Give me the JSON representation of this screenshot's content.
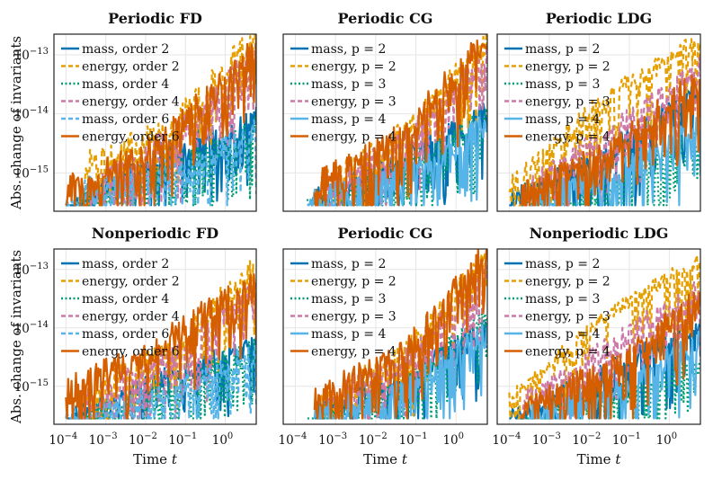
{
  "figure": {
    "ylabel": "Abs. change of invariants",
    "xlabel_prefix": "Time",
    "xlabel_var": "t",
    "x_tick_labels": [
      "10",
      "10",
      "10",
      "10",
      "10"
    ],
    "x_tick_exponents": [
      "−4",
      "−3",
      "−2",
      "−1",
      "0"
    ],
    "y_tick_labels": [
      "10",
      "10",
      "10"
    ],
    "y_tick_exponents": [
      "−15",
      "−14",
      "−13"
    ]
  },
  "chart_data": [
    {
      "type": "line",
      "title": "Periodic FD",
      "xscale": "log",
      "yscale": "log",
      "xlim": [
        5e-05,
        6
      ],
      "ylim_log10": [
        -15.65,
        -12.65
      ],
      "legend_position": "top-left",
      "grid": true,
      "series": [
        {
          "name": "mass, order 2",
          "color": "#0072b2",
          "style": "solid",
          "start": 0.0001,
          "end": 6,
          "level": [
            -15.6,
            -14.7,
            -14.1
          ],
          "noise": 0.45,
          "seed": 11
        },
        {
          "name": "energy, order 2",
          "color": "#e69f00",
          "style": "dashed",
          "start": 0.0003,
          "end": 6,
          "level": [
            -14.9,
            -14.2,
            -12.7
          ],
          "noise": 0.5,
          "seed": 12
        },
        {
          "name": "mass, order 4",
          "color": "#009e73",
          "style": "dotted",
          "start": 0.0002,
          "end": 6,
          "level": [
            -15.6,
            -15.0,
            -14.2
          ],
          "noise": 0.45,
          "seed": 13
        },
        {
          "name": "energy, order 4",
          "color": "#cc79a7",
          "style": "dashed",
          "start": 0.0004,
          "end": 6,
          "level": [
            -15.4,
            -14.4,
            -13.0
          ],
          "noise": 0.5,
          "seed": 14
        },
        {
          "name": "mass, order 6",
          "color": "#56b4e9",
          "style": "dashed",
          "start": 0.0001,
          "end": 6,
          "level": [
            -15.35,
            -15.1,
            -14.3
          ],
          "noise": 0.45,
          "seed": 15
        },
        {
          "name": "energy, order 6",
          "color": "#d55e00",
          "style": "solid",
          "start": 0.0001,
          "end": 6,
          "level": [
            -15.3,
            -14.5,
            -12.9
          ],
          "noise": 0.5,
          "seed": 16
        }
      ]
    },
    {
      "type": "line",
      "title": "Periodic CG",
      "xscale": "log",
      "yscale": "log",
      "xlim": [
        5e-05,
        6
      ],
      "ylim_log10": [
        -15.65,
        -12.65
      ],
      "legend_position": "top-left",
      "grid": true,
      "series": [
        {
          "name": "mass, p = 2",
          "color": "#0072b2",
          "style": "solid",
          "start": 0.0003,
          "end": 6,
          "level": [
            -15.5,
            -14.8,
            -14.0
          ],
          "noise": 0.45,
          "seed": 21
        },
        {
          "name": "energy, p = 2",
          "color": "#e69f00",
          "style": "dashed",
          "start": 0.0003,
          "end": 6,
          "level": [
            -15.3,
            -14.4,
            -12.8
          ],
          "noise": 0.5,
          "seed": 22
        },
        {
          "name": "mass, p = 3",
          "color": "#009e73",
          "style": "dotted",
          "start": 0.0002,
          "end": 6,
          "level": [
            -15.6,
            -15.0,
            -14.1
          ],
          "noise": 0.45,
          "seed": 23
        },
        {
          "name": "energy, p = 3",
          "color": "#cc79a7",
          "style": "dashed",
          "start": 0.0005,
          "end": 6,
          "level": [
            -15.3,
            -14.5,
            -13.0
          ],
          "noise": 0.5,
          "seed": 24
        },
        {
          "name": "mass, p = 4",
          "color": "#56b4e9",
          "style": "solid",
          "start": 0.0002,
          "end": 6,
          "level": [
            -15.5,
            -15.1,
            -14.2
          ],
          "noise": 0.45,
          "seed": 25
        },
        {
          "name": "energy, p = 4",
          "color": "#d55e00",
          "style": "solid",
          "start": 0.0003,
          "end": 6,
          "level": [
            -15.2,
            -14.4,
            -12.7
          ],
          "noise": 0.5,
          "seed": 26
        }
      ]
    },
    {
      "type": "line",
      "title": "Periodic LDG",
      "xscale": "log",
      "yscale": "log",
      "xlim": [
        5e-05,
        6
      ],
      "ylim_log10": [
        -15.65,
        -12.65
      ],
      "legend_position": "top-left",
      "grid": true,
      "series": [
        {
          "name": "mass, p = 2",
          "color": "#0072b2",
          "style": "solid",
          "start": 0.0001,
          "end": 6,
          "level": [
            -15.5,
            -14.7,
            -13.6
          ],
          "noise": 0.4,
          "seed": 31
        },
        {
          "name": "energy, p = 2",
          "color": "#e69f00",
          "style": "dashed",
          "start": 0.0001,
          "end": 6,
          "level": [
            -15.2,
            -13.7,
            -12.7
          ],
          "noise": 0.25,
          "seed": 32
        },
        {
          "name": "mass, p = 3",
          "color": "#009e73",
          "style": "dotted",
          "start": 0.0002,
          "end": 6,
          "level": [
            -15.6,
            -15.2,
            -14.4
          ],
          "noise": 0.45,
          "seed": 33
        },
        {
          "name": "energy, p = 3",
          "color": "#cc79a7",
          "style": "dashed",
          "start": 0.0002,
          "end": 6,
          "level": [
            -15.3,
            -14.3,
            -13.2
          ],
          "noise": 0.4,
          "seed": 34
        },
        {
          "name": "mass, p = 4",
          "color": "#56b4e9",
          "style": "solid",
          "start": 0.0003,
          "end": 6,
          "level": [
            -15.5,
            -15.0,
            -14.2
          ],
          "noise": 0.45,
          "seed": 35
        },
        {
          "name": "energy, p = 4",
          "color": "#d55e00",
          "style": "solid",
          "start": 0.0002,
          "end": 6,
          "level": [
            -15.4,
            -14.6,
            -13.4
          ],
          "noise": 0.45,
          "seed": 36
        }
      ]
    },
    {
      "type": "line",
      "title": "Nonperiodic FD",
      "xscale": "log",
      "yscale": "log",
      "xlim": [
        5e-05,
        6
      ],
      "ylim_log10": [
        -15.65,
        -12.65
      ],
      "legend_position": "top-left",
      "grid": true,
      "series": [
        {
          "name": "mass, order 2",
          "color": "#0072b2",
          "style": "solid",
          "start": 0.0001,
          "end": 6,
          "level": [
            -15.6,
            -14.9,
            -14.3
          ],
          "noise": 0.45,
          "seed": 41
        },
        {
          "name": "energy, order 2",
          "color": "#e69f00",
          "style": "dashed",
          "start": 0.0002,
          "end": 6,
          "level": [
            -15.2,
            -14.4,
            -13.0
          ],
          "noise": 0.5,
          "seed": 42
        },
        {
          "name": "mass, order 4",
          "color": "#009e73",
          "style": "dotted",
          "start": 0.0002,
          "end": 6,
          "level": [
            -15.6,
            -15.0,
            -14.4
          ],
          "noise": 0.45,
          "seed": 43
        },
        {
          "name": "energy, order 4",
          "color": "#cc79a7",
          "style": "dashed",
          "start": 0.0002,
          "end": 6,
          "level": [
            -15.3,
            -14.6,
            -13.3
          ],
          "noise": 0.5,
          "seed": 44
        },
        {
          "name": "mass, order 6",
          "color": "#56b4e9",
          "style": "dashed",
          "start": 0.0001,
          "end": 6,
          "level": [
            -15.6,
            -15.2,
            -14.4
          ],
          "noise": 0.45,
          "seed": 45
        },
        {
          "name": "energy, order 6",
          "color": "#d55e00",
          "style": "solid",
          "start": 0.0001,
          "end": 6,
          "level": [
            -15.1,
            -14.3,
            -13.1
          ],
          "noise": 0.5,
          "seed": 46
        }
      ]
    },
    {
      "type": "line",
      "title": "Periodic CG",
      "xscale": "log",
      "yscale": "log",
      "xlim": [
        5e-05,
        6
      ],
      "ylim_log10": [
        -15.65,
        -12.65
      ],
      "legend_position": "top-left",
      "grid": true,
      "series": [
        {
          "name": "mass, p = 2",
          "color": "#0072b2",
          "style": "solid",
          "start": 0.0003,
          "end": 6,
          "level": [
            -15.5,
            -14.9,
            -14.0
          ],
          "noise": 0.45,
          "seed": 51
        },
        {
          "name": "energy, p = 2",
          "color": "#e69f00",
          "style": "dashed",
          "start": 0.0004,
          "end": 6,
          "level": [
            -15.3,
            -14.5,
            -12.8
          ],
          "noise": 0.5,
          "seed": 52
        },
        {
          "name": "mass, p = 3",
          "color": "#009e73",
          "style": "dotted",
          "start": 0.0002,
          "end": 6,
          "level": [
            -15.6,
            -15.1,
            -13.8
          ],
          "noise": 0.45,
          "seed": 53
        },
        {
          "name": "energy, p = 3",
          "color": "#cc79a7",
          "style": "dashed",
          "start": 0.0005,
          "end": 6,
          "level": [
            -15.3,
            -14.6,
            -13.1
          ],
          "noise": 0.5,
          "seed": 54
        },
        {
          "name": "mass, p = 4",
          "color": "#56b4e9",
          "style": "solid",
          "start": 0.0003,
          "end": 6,
          "level": [
            -15.5,
            -15.1,
            -14.1
          ],
          "noise": 0.45,
          "seed": 55
        },
        {
          "name": "energy, p = 4",
          "color": "#d55e00",
          "style": "solid",
          "start": 0.0003,
          "end": 6,
          "level": [
            -15.2,
            -14.5,
            -12.7
          ],
          "noise": 0.5,
          "seed": 56
        }
      ]
    },
    {
      "type": "line",
      "title": "Nonperiodic LDG",
      "xscale": "log",
      "yscale": "log",
      "xlim": [
        5e-05,
        6
      ],
      "ylim_log10": [
        -15.65,
        -12.65
      ],
      "legend_position": "top-left",
      "grid": true,
      "series": [
        {
          "name": "mass, p = 2",
          "color": "#0072b2",
          "style": "solid",
          "start": 0.0001,
          "end": 6,
          "level": [
            -15.6,
            -14.8,
            -13.9
          ],
          "noise": 0.4,
          "seed": 61
        },
        {
          "name": "energy, p = 2",
          "color": "#e69f00",
          "style": "dashed",
          "start": 0.0001,
          "end": 6,
          "level": [
            -15.2,
            -13.8,
            -12.8
          ],
          "noise": 0.25,
          "seed": 62
        },
        {
          "name": "mass, p = 3",
          "color": "#009e73",
          "style": "dotted",
          "start": 0.0002,
          "end": 6,
          "level": [
            -15.6,
            -15.2,
            -14.6
          ],
          "noise": 0.45,
          "seed": 63
        },
        {
          "name": "energy, p = 3",
          "color": "#cc79a7",
          "style": "dashed",
          "start": 0.0002,
          "end": 6,
          "level": [
            -15.3,
            -14.3,
            -13.3
          ],
          "noise": 0.4,
          "seed": 64
        },
        {
          "name": "mass, p = 4",
          "color": "#56b4e9",
          "style": "solid",
          "start": 0.0003,
          "end": 6,
          "level": [
            -15.5,
            -15.1,
            -14.2
          ],
          "noise": 0.45,
          "seed": 65
        },
        {
          "name": "energy, p = 4",
          "color": "#d55e00",
          "style": "solid",
          "start": 0.0002,
          "end": 6,
          "level": [
            -15.4,
            -14.7,
            -13.5
          ],
          "noise": 0.45,
          "seed": 66
        }
      ]
    }
  ]
}
